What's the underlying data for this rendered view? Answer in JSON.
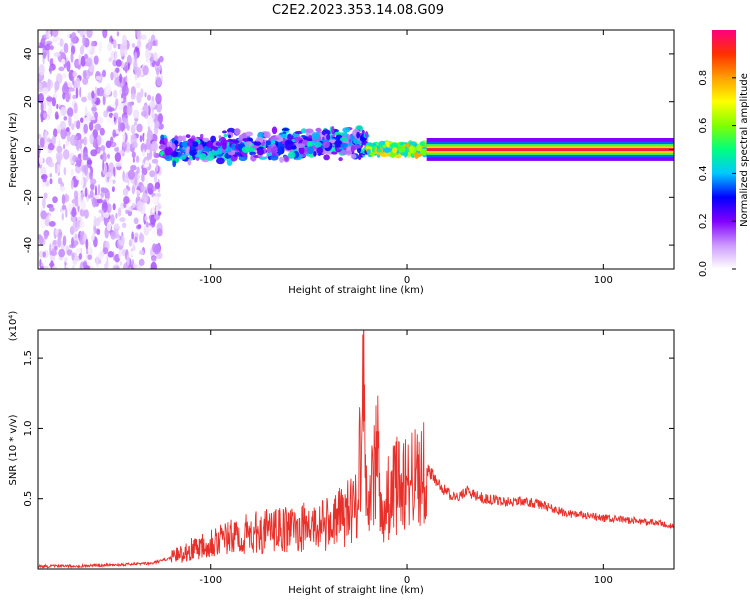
{
  "title": "C2E2.2023.353.14.08.G09",
  "chart_data": [
    {
      "type": "heatmap",
      "xlabel": "Height of straight line (km)",
      "ylabel": "Frequency (Hz)",
      "xlim": [
        -188,
        136
      ],
      "ylim": [
        -50,
        50
      ],
      "xticks": [
        -100,
        0,
        100
      ],
      "xtick_labels": [
        "-100",
        "0",
        "100"
      ],
      "yticks": [
        -40,
        -20,
        0,
        20,
        40
      ],
      "ytick_labels": [
        "-40",
        "-20",
        "0",
        "20",
        "40"
      ],
      "grid": false,
      "colorbar": {
        "label": "Normalized spectral amplitude",
        "range": [
          0,
          1
        ],
        "ticks": [
          0.0,
          0.2,
          0.4,
          0.6,
          0.8
        ],
        "tick_labels": [
          "0.0",
          "0.2",
          "0.4",
          "0.6",
          "0.8"
        ],
        "colormap": [
          "#ffffff",
          "#cc99ff",
          "#8000ff",
          "#0000ff",
          "#00c8ff",
          "#00ff80",
          "#80ff00",
          "#ffff00",
          "#ffa000",
          "#ff3000",
          "#ff0080"
        ]
      },
      "features": [
        {
          "x_range": [
            -188,
            -125
          ],
          "freq_range": [
            -50,
            50
          ],
          "amplitude_range": [
            0.0,
            0.15
          ]
        },
        {
          "x_range": [
            -125,
            -20
          ],
          "freq_center": 0,
          "freq_spread": 10,
          "amplitude_range": [
            0.1,
            0.5
          ]
        },
        {
          "x_range": [
            -20,
            10
          ],
          "freq_center": 0,
          "freq_spread": 4,
          "amplitude_range": [
            0.4,
            0.8
          ]
        },
        {
          "x_range": [
            10,
            136
          ],
          "freq_center": 0,
          "freq_spread": 1.5,
          "amplitude_range": [
            0.8,
            1.0
          ]
        }
      ]
    },
    {
      "type": "line",
      "xlabel": "Height of straight line (km)",
      "ylabel": "SNR (10 * v/v)",
      "y_multiplier": "(x10⁴)",
      "xlim": [
        -188,
        136
      ],
      "ylim": [
        0,
        1.7
      ],
      "xticks": [
        -100,
        0,
        100
      ],
      "xtick_labels": [
        "-100",
        "0",
        "100"
      ],
      "yticks": [
        0.5,
        1.0,
        1.5
      ],
      "ytick_labels": [
        "0.5",
        "1.0",
        "1.5"
      ],
      "grid": false,
      "series_color": "#e8302a",
      "x": [
        -188,
        -170,
        -150,
        -130,
        -120,
        -110,
        -100,
        -90,
        -80,
        -70,
        -60,
        -50,
        -40,
        -30,
        -25,
        -22,
        -20,
        -15,
        -12,
        -10,
        -5,
        0,
        5,
        10,
        15,
        20,
        25,
        30,
        35,
        40,
        50,
        60,
        70,
        80,
        90,
        100,
        110,
        120,
        130,
        136
      ],
      "values": [
        0.02,
        0.02,
        0.03,
        0.04,
        0.08,
        0.14,
        0.2,
        0.22,
        0.25,
        0.27,
        0.28,
        0.3,
        0.32,
        0.4,
        0.5,
        1.6,
        0.3,
        0.9,
        0.25,
        0.5,
        0.6,
        0.62,
        0.66,
        0.72,
        0.62,
        0.55,
        0.5,
        0.56,
        0.52,
        0.5,
        0.48,
        0.48,
        0.45,
        0.4,
        0.38,
        0.36,
        0.35,
        0.34,
        0.32,
        0.3
      ]
    }
  ]
}
